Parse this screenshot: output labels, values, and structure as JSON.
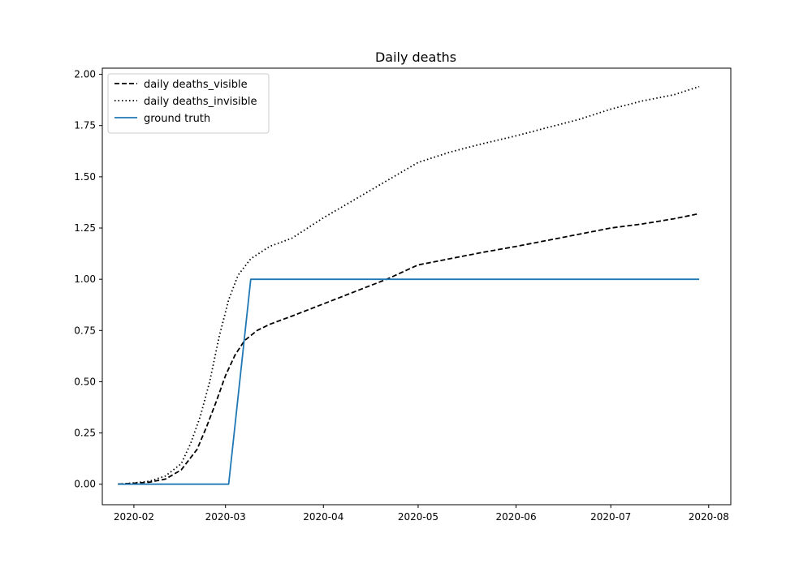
{
  "chart_data": {
    "type": "line",
    "title": "Daily deaths",
    "xlabel": "",
    "ylabel": "",
    "x_ticks": [
      "2020-02",
      "2020-03",
      "2020-04",
      "2020-05",
      "2020-06",
      "2020-07",
      "2020-08"
    ],
    "y_ticks": [
      "0.00",
      "0.25",
      "0.50",
      "0.75",
      "1.00",
      "1.25",
      "1.50",
      "1.75",
      "2.00"
    ],
    "xlim": [
      "2020-01-22",
      "2020-08-08"
    ],
    "ylim": [
      -0.1,
      2.03
    ],
    "grid": false,
    "legend_position": "upper-left",
    "series": [
      {
        "name": "daily deaths_visible",
        "style": "dashed",
        "color": "#000000",
        "points": [
          [
            "2020-01-27",
            0.0
          ],
          [
            "2020-02-01",
            0.005
          ],
          [
            "2020-02-06",
            0.01
          ],
          [
            "2020-02-11",
            0.025
          ],
          [
            "2020-02-16",
            0.07
          ],
          [
            "2020-02-21",
            0.17
          ],
          [
            "2020-02-24",
            0.28
          ],
          [
            "2020-02-27",
            0.4
          ],
          [
            "2020-03-01",
            0.53
          ],
          [
            "2020-03-04",
            0.63
          ],
          [
            "2020-03-07",
            0.7
          ],
          [
            "2020-03-11",
            0.75
          ],
          [
            "2020-03-15",
            0.78
          ],
          [
            "2020-03-22",
            0.82
          ],
          [
            "2020-04-01",
            0.88
          ],
          [
            "2020-04-11",
            0.94
          ],
          [
            "2020-04-21",
            1.0
          ],
          [
            "2020-05-01",
            1.07
          ],
          [
            "2020-05-11",
            1.1
          ],
          [
            "2020-05-21",
            1.13
          ],
          [
            "2020-06-01",
            1.16
          ],
          [
            "2020-06-11",
            1.19
          ],
          [
            "2020-06-21",
            1.22
          ],
          [
            "2020-07-01",
            1.25
          ],
          [
            "2020-07-11",
            1.27
          ],
          [
            "2020-07-21",
            1.295
          ],
          [
            "2020-07-29",
            1.32
          ]
        ]
      },
      {
        "name": "daily deaths_invisible",
        "style": "dotted",
        "color": "#000000",
        "points": [
          [
            "2020-01-27",
            0.0
          ],
          [
            "2020-02-01",
            0.006
          ],
          [
            "2020-02-06",
            0.015
          ],
          [
            "2020-02-11",
            0.04
          ],
          [
            "2020-02-16",
            0.1
          ],
          [
            "2020-02-19",
            0.2
          ],
          [
            "2020-02-22",
            0.33
          ],
          [
            "2020-02-25",
            0.5
          ],
          [
            "2020-02-28",
            0.72
          ],
          [
            "2020-03-02",
            0.9
          ],
          [
            "2020-03-05",
            1.02
          ],
          [
            "2020-03-09",
            1.1
          ],
          [
            "2020-03-15",
            1.16
          ],
          [
            "2020-03-22",
            1.2
          ],
          [
            "2020-04-01",
            1.3
          ],
          [
            "2020-04-11",
            1.39
          ],
          [
            "2020-04-21",
            1.48
          ],
          [
            "2020-05-01",
            1.57
          ],
          [
            "2020-05-11",
            1.62
          ],
          [
            "2020-05-21",
            1.66
          ],
          [
            "2020-06-01",
            1.7
          ],
          [
            "2020-06-11",
            1.74
          ],
          [
            "2020-06-21",
            1.78
          ],
          [
            "2020-07-01",
            1.83
          ],
          [
            "2020-07-11",
            1.87
          ],
          [
            "2020-07-21",
            1.9
          ],
          [
            "2020-07-29",
            1.94
          ]
        ]
      },
      {
        "name": "ground truth",
        "style": "solid",
        "color": "#1f77b4",
        "points": [
          [
            "2020-01-27",
            0.0
          ],
          [
            "2020-03-02",
            0.0
          ],
          [
            "2020-03-09",
            1.0
          ],
          [
            "2020-07-29",
            1.0
          ]
        ]
      }
    ]
  }
}
